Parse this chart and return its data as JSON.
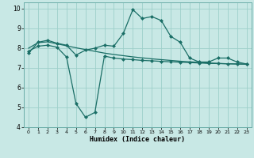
{
  "xlabel": "Humidex (Indice chaleur)",
  "ylabel": "",
  "xlim": [
    -0.5,
    23.5
  ],
  "ylim": [
    4,
    10.3
  ],
  "yticks": [
    4,
    5,
    6,
    7,
    8,
    9,
    10
  ],
  "xticks": [
    0,
    1,
    2,
    3,
    4,
    5,
    6,
    7,
    8,
    9,
    10,
    11,
    12,
    13,
    14,
    15,
    16,
    17,
    18,
    19,
    20,
    21,
    22,
    23
  ],
  "bg_color": "#c8e8e5",
  "grid_color": "#9ecfca",
  "line_color": "#1a6e66",
  "line1_x": [
    0,
    1,
    2,
    3,
    4,
    5,
    6,
    7,
    8,
    9,
    10,
    11,
    12,
    13,
    14,
    15,
    16,
    17,
    18,
    19,
    20,
    21,
    22,
    23
  ],
  "line1_y": [
    7.75,
    8.3,
    8.4,
    8.25,
    8.15,
    7.65,
    7.9,
    8.0,
    8.15,
    8.1,
    8.75,
    9.95,
    9.5,
    9.6,
    9.4,
    8.6,
    8.3,
    7.5,
    7.3,
    7.3,
    7.5,
    7.5,
    7.3,
    7.2
  ],
  "line2_x": [
    0,
    1,
    2,
    3,
    4,
    5,
    6,
    7,
    8,
    9,
    10,
    11,
    12,
    13,
    14,
    15,
    16,
    17,
    18,
    19,
    20,
    21,
    22,
    23
  ],
  "line2_y": [
    8.0,
    8.28,
    8.32,
    8.22,
    8.12,
    8.02,
    7.93,
    7.84,
    7.75,
    7.68,
    7.62,
    7.56,
    7.51,
    7.46,
    7.42,
    7.38,
    7.34,
    7.31,
    7.28,
    7.25,
    7.23,
    7.21,
    7.2,
    7.19
  ],
  "line3_x": [
    0,
    1,
    2,
    3,
    4,
    5,
    6,
    7,
    8,
    9,
    10,
    11,
    12,
    13,
    14,
    15,
    16,
    17,
    18,
    19,
    20,
    21,
    22,
    23
  ],
  "line3_y": [
    7.85,
    8.1,
    8.15,
    8.05,
    7.55,
    5.2,
    4.5,
    4.75,
    7.6,
    7.5,
    7.45,
    7.42,
    7.38,
    7.36,
    7.33,
    7.31,
    7.29,
    7.27,
    7.25,
    7.23,
    7.22,
    7.21,
    7.2,
    7.19
  ]
}
